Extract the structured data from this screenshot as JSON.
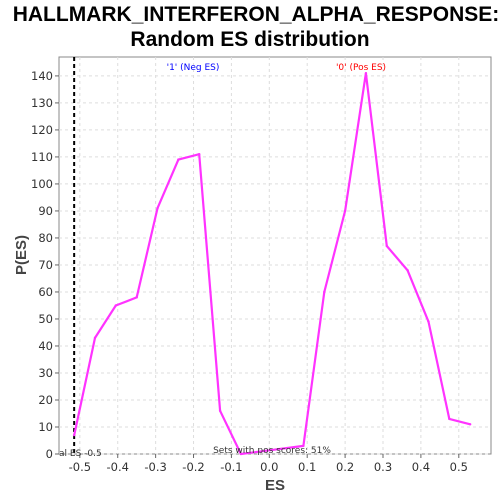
{
  "chart_data": {
    "type": "line",
    "title_line1": "HALLMARK_INTERFERON_ALPHA_RESPONSE:",
    "title_line2": "Random ES distribution",
    "xlabel": "ES",
    "ylabel": "P(ES)",
    "xlim": [
      -0.555,
      0.585
    ],
    "ylim": [
      0,
      147
    ],
    "xticks": [
      -0.5,
      -0.4,
      -0.3,
      -0.2,
      -0.1,
      0.0,
      0.1,
      0.2,
      0.3,
      0.4,
      0.5
    ],
    "xtick_labels": [
      "-0.5",
      "-0.4",
      "-0.3",
      "-0.2",
      "-0.1",
      "0.0",
      "0.1",
      "0.2",
      "0.3",
      "0.4",
      "0.5"
    ],
    "yticks": [
      0,
      10,
      20,
      30,
      40,
      50,
      60,
      70,
      80,
      90,
      100,
      110,
      120,
      130,
      140
    ],
    "ytick_labels": [
      "0",
      "10",
      "20",
      "30",
      "40",
      "50",
      "60",
      "70",
      "80",
      "90",
      "100",
      "110",
      "120",
      "130",
      "140"
    ],
    "grid": true,
    "series": [
      {
        "color": "#ff33ff",
        "x": [
          -0.515,
          -0.46,
          -0.405,
          -0.35,
          -0.295,
          -0.24,
          -0.185,
          -0.13,
          -0.075,
          0.09,
          0.145,
          0.2,
          0.255,
          0.31,
          0.365,
          0.42,
          0.475,
          0.53
        ],
        "y": [
          7,
          43,
          55,
          58,
          91,
          109,
          111,
          16,
          0,
          3,
          60,
          90,
          141,
          77,
          68,
          49,
          13,
          11
        ]
      }
    ],
    "vline": {
      "x": -0.515,
      "style": "dashed",
      "color": "#000000"
    },
    "annotations": {
      "neg_label": "'1' (Neg ES)",
      "neg_color": "#0000ff",
      "pos_label": "'0' (Pos ES)",
      "pos_color": "#ff0000",
      "sets_pos": "Sets with pos scores: 51%",
      "actual_es": "al ES -0.5"
    }
  }
}
